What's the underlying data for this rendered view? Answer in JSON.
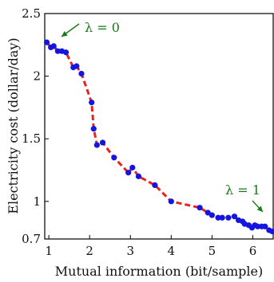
{
  "chart_data": {
    "type": "line",
    "xlabel": "Mutual information (bit/sample)",
    "ylabel": "Electricity cost (dollar/day)",
    "xlim": [
      0.9,
      6.5
    ],
    "ylim": [
      0.7,
      2.5
    ],
    "xticks": [
      "1",
      "2",
      "3",
      "4",
      "5",
      "6"
    ],
    "yticks": [
      "0.7",
      "1",
      "1.5",
      "2",
      "2.5"
    ],
    "grid": false,
    "colors": {
      "line": "#e8231a",
      "markers": "#1515e0",
      "annotation": "#1a7a1a"
    },
    "series": [
      {
        "line_style": "dashed",
        "marker": "dot",
        "points": [
          [
            0.95,
            2.27
          ],
          [
            1.05,
            2.23
          ],
          [
            1.12,
            2.24
          ],
          [
            1.22,
            2.2
          ],
          [
            1.32,
            2.2
          ],
          [
            1.42,
            2.19
          ],
          [
            1.6,
            2.07
          ],
          [
            1.68,
            2.08
          ],
          [
            1.8,
            2.02
          ],
          [
            2.05,
            1.79
          ],
          [
            2.1,
            1.58
          ],
          [
            2.18,
            1.45
          ],
          [
            2.32,
            1.47
          ],
          [
            2.6,
            1.35
          ],
          [
            2.95,
            1.23
          ],
          [
            3.05,
            1.27
          ],
          [
            3.2,
            1.2
          ],
          [
            3.6,
            1.13
          ],
          [
            4.0,
            1.0
          ],
          [
            4.7,
            0.95
          ],
          [
            4.9,
            0.91
          ],
          [
            5.0,
            0.89
          ],
          [
            5.15,
            0.87
          ],
          [
            5.25,
            0.87
          ],
          [
            5.4,
            0.87
          ],
          [
            5.55,
            0.88
          ],
          [
            5.65,
            0.85
          ],
          [
            5.75,
            0.84
          ],
          [
            5.8,
            0.82
          ],
          [
            5.9,
            0.81
          ],
          [
            5.98,
            0.79
          ],
          [
            6.05,
            0.81
          ],
          [
            6.12,
            0.8
          ],
          [
            6.22,
            0.8
          ],
          [
            6.3,
            0.8
          ],
          [
            6.4,
            0.77
          ],
          [
            6.48,
            0.76
          ]
        ]
      }
    ],
    "annotations": [
      {
        "text": "λ = 0",
        "arrow_to": [
          1.05,
          2.27
        ]
      },
      {
        "text": "λ = 1",
        "arrow_to": [
          6.35,
          0.78
        ]
      }
    ]
  }
}
